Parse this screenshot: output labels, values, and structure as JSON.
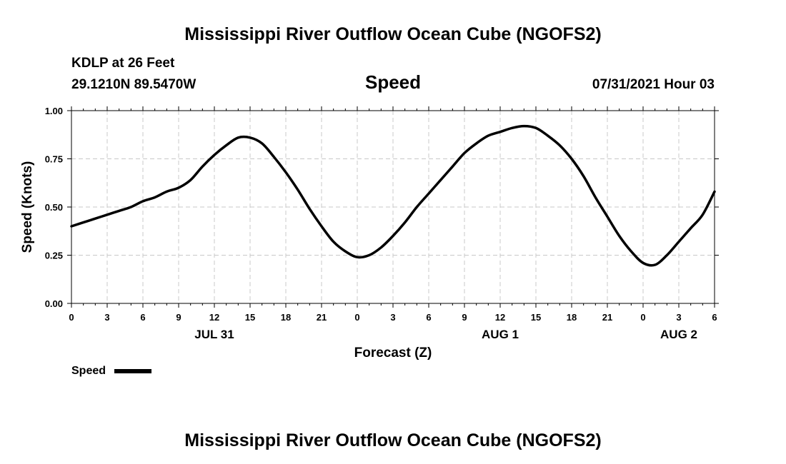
{
  "header": {
    "title": "Mississippi River Outflow Ocean Cube (NGOFS2)",
    "station": "KDLP at 26 Feet",
    "coords": "29.1210N  89.5470W",
    "variable": "Speed",
    "timestamp": "07/31/2021 Hour 03"
  },
  "footer": {
    "title": "Mississippi River Outflow Ocean Cube (NGOFS2)"
  },
  "legend": {
    "label": "Speed"
  },
  "chart_data": {
    "type": "line",
    "xlabel": "Forecast (Z)",
    "ylabel": "Speed (Knots)",
    "xlim": [
      0,
      54
    ],
    "ylim": [
      0,
      1.0
    ],
    "grid": true,
    "x_tick_values": [
      0,
      3,
      6,
      9,
      12,
      15,
      18,
      21,
      24,
      27,
      30,
      33,
      36,
      39,
      42,
      45,
      48,
      51,
      54
    ],
    "x_tick_labels": [
      "0",
      "3",
      "6",
      "9",
      "12",
      "15",
      "18",
      "21",
      "0",
      "3",
      "6",
      "9",
      "12",
      "15",
      "18",
      "21",
      "0",
      "3",
      "6"
    ],
    "y_ticks": [
      0.0,
      0.25,
      0.5,
      0.75,
      1.0
    ],
    "y_tick_labels": [
      "0.00",
      "0.25",
      "0.50",
      "0.75",
      "1.00"
    ],
    "date_labels": [
      {
        "x": 12,
        "label": "JUL 31"
      },
      {
        "x": 36,
        "label": "AUG 1"
      },
      {
        "x": 51,
        "label": "AUG 2"
      }
    ],
    "legend_position": "bottom-left",
    "series": [
      {
        "name": "Speed",
        "color": "#000000",
        "x": [
          0,
          1,
          2,
          3,
          4,
          5,
          6,
          7,
          8,
          9,
          10,
          11,
          12,
          13,
          14,
          15,
          16,
          17,
          18,
          19,
          20,
          21,
          22,
          23,
          24,
          25,
          26,
          27,
          28,
          29,
          30,
          31,
          32,
          33,
          34,
          35,
          36,
          37,
          38,
          39,
          40,
          41,
          42,
          43,
          44,
          45,
          46,
          47,
          48,
          49,
          50,
          51,
          52,
          53,
          54
        ],
        "values": [
          0.4,
          0.42,
          0.44,
          0.46,
          0.48,
          0.5,
          0.53,
          0.55,
          0.58,
          0.6,
          0.64,
          0.71,
          0.77,
          0.82,
          0.86,
          0.86,
          0.83,
          0.76,
          0.68,
          0.59,
          0.49,
          0.4,
          0.32,
          0.27,
          0.24,
          0.25,
          0.29,
          0.35,
          0.42,
          0.5,
          0.57,
          0.64,
          0.71,
          0.78,
          0.83,
          0.87,
          0.89,
          0.91,
          0.92,
          0.91,
          0.87,
          0.82,
          0.75,
          0.66,
          0.55,
          0.45,
          0.35,
          0.27,
          0.21,
          0.2,
          0.25,
          0.32,
          0.39,
          0.46,
          0.58
        ]
      }
    ]
  }
}
